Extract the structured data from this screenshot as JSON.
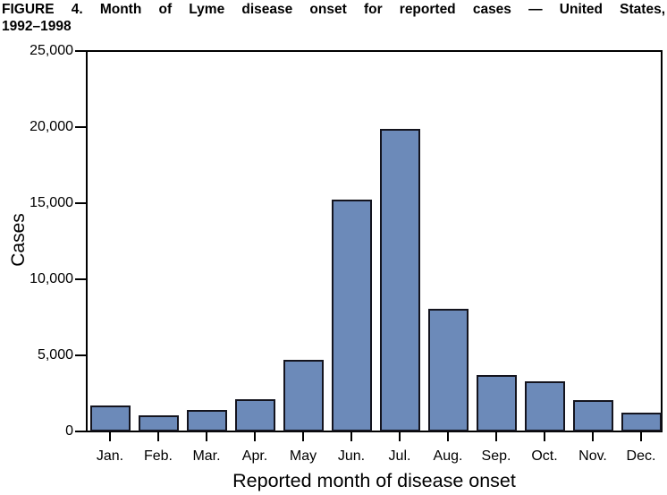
{
  "figure": {
    "title_line1": "FIGURE 4. Month of Lyme disease onset for reported cases — United States,",
    "title_line2": "1992–1998"
  },
  "chart_data": {
    "type": "bar",
    "title": "FIGURE 4. Month of Lyme disease onset for reported cases — United States, 1992–1998",
    "categories": [
      "Jan.",
      "Feb.",
      "Mar.",
      "Apr.",
      "May",
      "Jun.",
      "Jul.",
      "Aug.",
      "Sep.",
      "Oct.",
      "Nov.",
      "Dec."
    ],
    "values": [
      1700,
      1050,
      1400,
      2100,
      4700,
      15250,
      19900,
      8050,
      3700,
      3300,
      2050,
      1250
    ],
    "xlabel": "Reported month of disease onset",
    "ylabel": "Cases",
    "ylim": [
      0,
      25000
    ],
    "yticks": [
      0,
      5000,
      10000,
      15000,
      20000,
      25000
    ],
    "ytick_labels": [
      "0",
      "5,000",
      "10,000",
      "15,000",
      "20,000",
      "25,000"
    ],
    "grid": false,
    "legend": "none",
    "bar_fill": "#6c8ab9",
    "bar_border": "#14141e",
    "axis_color": "#000000",
    "plot_background": "#ffffff"
  }
}
